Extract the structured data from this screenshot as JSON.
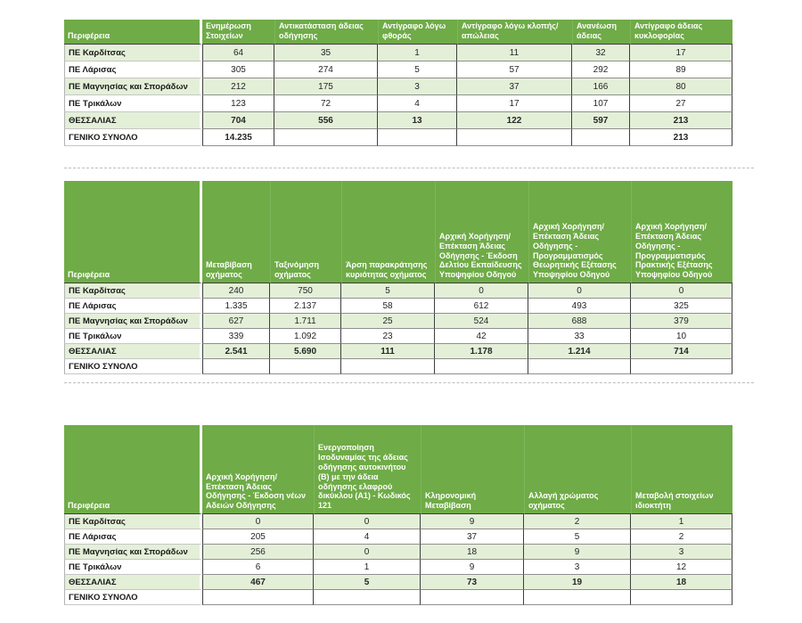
{
  "colors": {
    "header_green": "#6FAB47",
    "row_shade_green": "#E4EFD8",
    "header_text": "#ffffff",
    "grid_dark": "#3f3f3f",
    "grid_light": "#8f8f8f"
  },
  "tables": [
    {
      "id": "table-1",
      "columns": [
        "Περιφέρεια",
        "Ενημέρωση Στοιχείων",
        "Αντικατάσταση άδειας οδήγησης",
        "Αντίγραφο λόγω φθοράς",
        "Αντίγραφο λόγω κλοπής/απώλειας",
        "Ανανέωση άδειας",
        "Αντίγραφο άδειας κυκλοφορίας"
      ],
      "rows": [
        {
          "label": "ΠΕ Καρδίτσας",
          "values": [
            "64",
            "35",
            "1",
            "11",
            "32",
            "17"
          ],
          "total": false
        },
        {
          "label": "ΠΕ Λάρισας",
          "values": [
            "305",
            "274",
            "5",
            "57",
            "292",
            "89"
          ],
          "total": false
        },
        {
          "label": "ΠΕ Μαγνησίας και Σποράδων",
          "values": [
            "212",
            "175",
            "3",
            "37",
            "166",
            "80"
          ],
          "total": false
        },
        {
          "label": "ΠΕ Τρικάλων",
          "values": [
            "123",
            "72",
            "4",
            "17",
            "107",
            "27"
          ],
          "total": false
        },
        {
          "label": "ΘΕΣΣΑΛΙΑΣ",
          "values": [
            "704",
            "556",
            "13",
            "122",
            "597",
            "213"
          ],
          "total": true
        },
        {
          "label": "ΓΕΝΙΚΟ ΣΥΝΟΛΟ",
          "values": [
            "14.235",
            "",
            "",
            "",
            "",
            "213"
          ],
          "total": true
        }
      ]
    },
    {
      "id": "table-2",
      "columns": [
        "Περιφέρεια",
        "Μεταβίβαση οχήματος",
        "Ταξινόμηση οχήματος",
        "Άρση παρακράτησης κυριότητας οχήματος",
        "Αρχική Χορήγηση/Επέκταση Άδειας Οδήγησης - Έκδοση Δελτίου Εκπαίδευσης Υποψηφίου Οδηγού",
        "Αρχική Χορήγηση/Επέκταση Άδειας Οδήγησης - Προγραμματισμός Θεωρητικής Εξέτασης Υποψηφίου Οδηγού",
        "Αρχική Χορήγηση/Επέκταση Άδειας Οδήγησης - Προγραμματισμός Πρακτικής Εξέτασης Υποψηφίου Οδηγού"
      ],
      "rows": [
        {
          "label": "ΠΕ Καρδίτσας",
          "values": [
            "240",
            "750",
            "5",
            "0",
            "0",
            "0"
          ],
          "total": false
        },
        {
          "label": "ΠΕ Λάρισας",
          "values": [
            "1.335",
            "2.137",
            "58",
            "612",
            "493",
            "325"
          ],
          "total": false
        },
        {
          "label": "ΠΕ Μαγνησίας και Σποράδων",
          "values": [
            "627",
            "1.711",
            "25",
            "524",
            "688",
            "379"
          ],
          "total": false
        },
        {
          "label": "ΠΕ Τρικάλων",
          "values": [
            "339",
            "1.092",
            "23",
            "42",
            "33",
            "10"
          ],
          "total": false
        },
        {
          "label": "ΘΕΣΣΑΛΙΑΣ",
          "values": [
            "2.541",
            "5.690",
            "111",
            "1.178",
            "1.214",
            "714"
          ],
          "total": true
        },
        {
          "label": "ΓΕΝΙΚΟ ΣΥΝΟΛΟ",
          "values": [
            "",
            "",
            "",
            "",
            "",
            ""
          ],
          "total": true
        }
      ]
    },
    {
      "id": "table-3",
      "columns": [
        "Περιφέρεια",
        "Αρχική Χορήγηση/Επέκταση Άδειας Οδήγησης - Έκδοση νέων Αδειών Οδήγησης",
        "Ενεργοποίηση Ισοδυναμίας της άδειας οδήγησης αυτοκινήτου (Β) με την άδεια οδήγησης ελαφρού δικύκλου (Α1) - Κωδικός 121",
        "Κληρονομική Μεταβίβαση",
        "Αλλαγή χρώματος οχήματος",
        "Μεταβολή στοιχείων ιδιοκτήτη"
      ],
      "rows": [
        {
          "label": "ΠΕ Καρδίτσας",
          "values": [
            "0",
            "0",
            "9",
            "2",
            "1"
          ],
          "total": false
        },
        {
          "label": "ΠΕ Λάρισας",
          "values": [
            "205",
            "4",
            "37",
            "5",
            "2"
          ],
          "total": false
        },
        {
          "label": "ΠΕ Μαγνησίας και Σποράδων",
          "values": [
            "256",
            "0",
            "18",
            "9",
            "3"
          ],
          "total": false
        },
        {
          "label": "ΠΕ Τρικάλων",
          "values": [
            "6",
            "1",
            "9",
            "3",
            "12"
          ],
          "total": false
        },
        {
          "label": "ΘΕΣΣΑΛΙΑΣ",
          "values": [
            "467",
            "5",
            "73",
            "19",
            "18"
          ],
          "total": true
        },
        {
          "label": "ΓΕΝΙΚΟ ΣΥΝΟΛΟ",
          "values": [
            "",
            "",
            "",
            "",
            ""
          ],
          "total": true
        }
      ]
    }
  ]
}
